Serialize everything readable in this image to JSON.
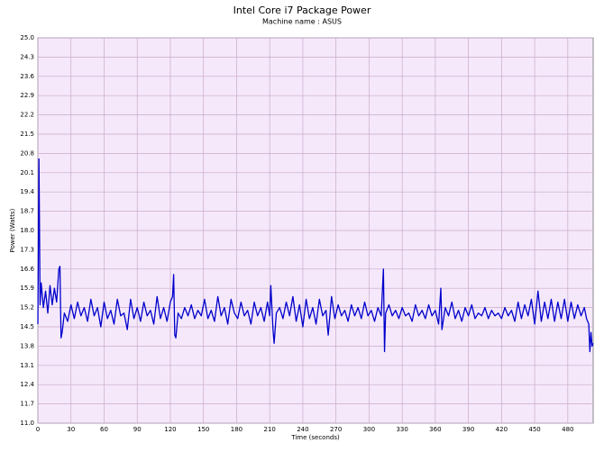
{
  "chart_data": {
    "type": "line",
    "title": "Intel Core i7 Package Power",
    "subtitle": "Machine name : ASUS",
    "x_label": "Time (seconds)",
    "y_label": "Power (Watts)",
    "color": "#0000cc",
    "title_color": "#2e8b2e",
    "background": "#f5e8fb",
    "grid": true,
    "xlim": [
      0,
      503
    ],
    "xticks": [
      0,
      30,
      60,
      90,
      120,
      150,
      180,
      210,
      240,
      270,
      300,
      330,
      360,
      390,
      420,
      450,
      480
    ],
    "ylim": [
      11,
      25
    ],
    "yticks": [
      {
        "value": 11,
        "label": "11.0"
      },
      11.7,
      12.4,
      13.1,
      13.8,
      14.5,
      15.2,
      15.9,
      16.6,
      17.3,
      {
        "value": 18,
        "label": "18.0"
      },
      18.7,
      19.4,
      20.1,
      20.8,
      21.5,
      22.2,
      22.9,
      23.6,
      24.3,
      {
        "value": 25,
        "label": "25.0"
      }
    ],
    "x": [
      0,
      1,
      2,
      3,
      5,
      7,
      9,
      11,
      13,
      15,
      17,
      19,
      20,
      21,
      22,
      24,
      27,
      30,
      33,
      36,
      39,
      42,
      45,
      48,
      51,
      54,
      57,
      60,
      63,
      66,
      69,
      72,
      75,
      78,
      81,
      84,
      87,
      90,
      93,
      96,
      99,
      102,
      105,
      108,
      111,
      114,
      117,
      120,
      122,
      123,
      124,
      125,
      127,
      130,
      133,
      136,
      139,
      142,
      145,
      148,
      151,
      154,
      157,
      160,
      163,
      166,
      169,
      172,
      175,
      178,
      181,
      184,
      187,
      190,
      193,
      196,
      199,
      202,
      205,
      208,
      210,
      211,
      213,
      214,
      216,
      219,
      222,
      225,
      228,
      231,
      234,
      237,
      240,
      243,
      246,
      249,
      252,
      255,
      258,
      261,
      263,
      266,
      269,
      272,
      275,
      278,
      281,
      284,
      287,
      290,
      293,
      296,
      299,
      302,
      305,
      308,
      311,
      313,
      314,
      315,
      318,
      321,
      324,
      327,
      330,
      333,
      336,
      339,
      342,
      345,
      348,
      351,
      354,
      357,
      360,
      363,
      365,
      366,
      369,
      372,
      375,
      378,
      381,
      384,
      387,
      390,
      393,
      396,
      399,
      402,
      405,
      408,
      411,
      414,
      417,
      420,
      423,
      426,
      429,
      432,
      435,
      438,
      441,
      444,
      447,
      450,
      453,
      456,
      459,
      462,
      465,
      468,
      471,
      474,
      477,
      480,
      483,
      486,
      489,
      492,
      495,
      497,
      499,
      500,
      501,
      502,
      503
    ],
    "values": [
      14.6,
      20.6,
      15.3,
      16.1,
      15.2,
      15.8,
      15.0,
      16.0,
      15.3,
      15.9,
      15.4,
      16.6,
      16.7,
      14.1,
      14.3,
      15.0,
      14.7,
      15.3,
      14.8,
      15.4,
      14.9,
      15.2,
      14.7,
      15.5,
      14.9,
      15.2,
      14.5,
      15.4,
      14.8,
      15.1,
      14.6,
      15.5,
      14.9,
      15.0,
      14.4,
      15.5,
      14.8,
      15.2,
      14.7,
      15.4,
      14.9,
      15.1,
      14.6,
      15.6,
      14.8,
      15.2,
      14.7,
      15.4,
      15.6,
      16.4,
      14.2,
      14.1,
      15.0,
      14.8,
      15.2,
      14.9,
      15.3,
      14.8,
      15.1,
      14.9,
      15.5,
      14.8,
      15.1,
      14.7,
      15.6,
      14.9,
      15.2,
      14.6,
      15.5,
      15.0,
      14.8,
      15.4,
      14.9,
      15.1,
      14.6,
      15.4,
      14.9,
      15.2,
      14.7,
      15.4,
      14.9,
      16.0,
      14.4,
      13.9,
      15.0,
      15.2,
      14.8,
      15.4,
      14.9,
      15.6,
      14.7,
      15.3,
      14.5,
      15.5,
      14.8,
      15.2,
      14.6,
      15.5,
      14.9,
      15.1,
      14.2,
      15.6,
      14.8,
      15.3,
      14.9,
      15.1,
      14.7,
      15.3,
      14.9,
      15.2,
      14.8,
      15.4,
      14.9,
      15.1,
      14.7,
      15.2,
      14.9,
      16.6,
      13.6,
      15.0,
      15.3,
      14.9,
      15.1,
      14.8,
      15.2,
      14.9,
      15.0,
      14.7,
      15.3,
      14.9,
      15.1,
      14.8,
      15.3,
      14.9,
      15.1,
      14.6,
      15.9,
      14.4,
      15.2,
      14.9,
      15.4,
      14.8,
      15.1,
      14.7,
      15.2,
      14.9,
      15.3,
      14.8,
      15.0,
      14.9,
      15.2,
      14.8,
      15.1,
      14.9,
      15.0,
      14.8,
      15.2,
      14.9,
      15.1,
      14.7,
      15.4,
      14.8,
      15.3,
      14.9,
      15.5,
      14.6,
      15.8,
      14.7,
      15.4,
      14.8,
      15.5,
      14.7,
      15.4,
      14.8,
      15.5,
      14.7,
      15.4,
      14.8,
      15.3,
      14.9,
      15.2,
      14.8,
      14.6,
      13.6,
      14.3,
      13.8,
      13.9
    ]
  }
}
